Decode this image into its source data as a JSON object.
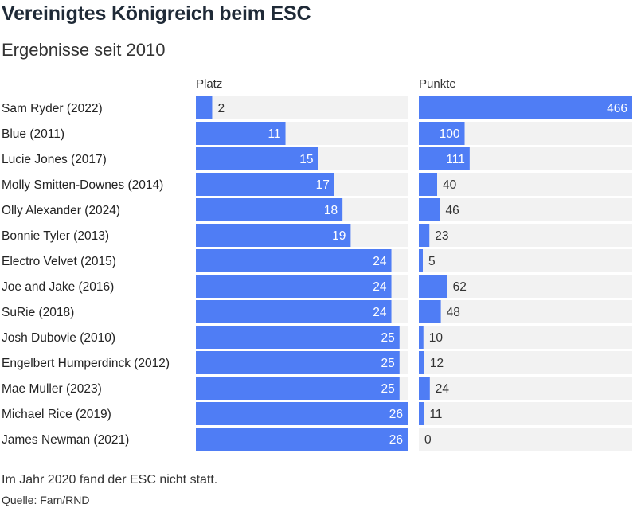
{
  "header": {
    "title": "Vereinigtes Königreich beim ESC",
    "subtitle": "Ergebnisse seit 2010"
  },
  "columns": {
    "platz": "Platz",
    "punkte": "Punkte"
  },
  "footer": {
    "note": "Im Jahr 2020 fand der ESC nicht statt.",
    "source": "Quelle: Fam/RND"
  },
  "colors": {
    "bar": "#4f7df5",
    "track": "#f2f2f2",
    "label_inside": "#ffffff",
    "label_outside": "#333333"
  },
  "chart_data": {
    "type": "bar",
    "orientation": "horizontal",
    "categories": [
      "Sam Ryder (2022)",
      "Blue (2011)",
      "Lucie Jones (2017)",
      "Molly Smitten-Downes (2014)",
      "Olly Alexander (2024)",
      "Bonnie Tyler (2013)",
      "Electro Velvet (2015)",
      "Joe and Jake (2016)",
      "SuRie (2018)",
      "Josh Dubovie (2010)",
      "Engelbert Humperdinck (2012)",
      "Mae Muller (2023)",
      "Michael Rice (2019)",
      "James Newman (2021)"
    ],
    "series": [
      {
        "name": "Platz",
        "values": [
          2,
          11,
          15,
          17,
          18,
          19,
          24,
          24,
          24,
          25,
          25,
          25,
          26,
          26
        ],
        "max": 26
      },
      {
        "name": "Punkte",
        "values": [
          466,
          100,
          111,
          40,
          46,
          23,
          5,
          62,
          48,
          10,
          12,
          24,
          11,
          0
        ],
        "max": 466
      }
    ]
  }
}
